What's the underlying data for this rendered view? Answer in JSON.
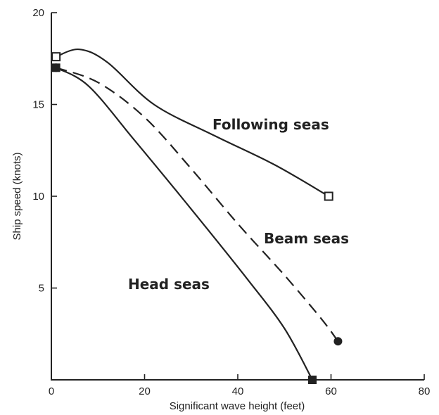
{
  "chart_data": {
    "type": "line",
    "xlabel": "Significant wave height (feet)",
    "ylabel": "Ship speed (knots)",
    "xlim": [
      0,
      80
    ],
    "ylim": [
      0,
      20
    ],
    "x_ticks": [
      0,
      20,
      40,
      60,
      80
    ],
    "y_ticks": [
      5,
      10,
      15,
      20
    ],
    "grid": false,
    "series": [
      {
        "name": "Following seas",
        "marker": "open-square",
        "x": [
          1,
          6,
          12,
          22,
          35,
          48,
          59.5
        ],
        "y": [
          17.6,
          18.0,
          17.3,
          15.0,
          13.3,
          11.7,
          10.0
        ]
      },
      {
        "name": "Beam seas",
        "marker": "filled-circle",
        "style": "dashed",
        "x": [
          1,
          10,
          20,
          30,
          40,
          50,
          58,
          61.5
        ],
        "y": [
          17.0,
          16.2,
          14.3,
          11.5,
          8.5,
          5.7,
          3.3,
          2.1
        ]
      },
      {
        "name": "Head seas",
        "marker": "filled-square",
        "x": [
          1,
          8,
          18,
          30,
          42,
          50,
          56
        ],
        "y": [
          17.0,
          16.0,
          13.0,
          9.3,
          5.5,
          2.8,
          0.0
        ]
      }
    ]
  }
}
